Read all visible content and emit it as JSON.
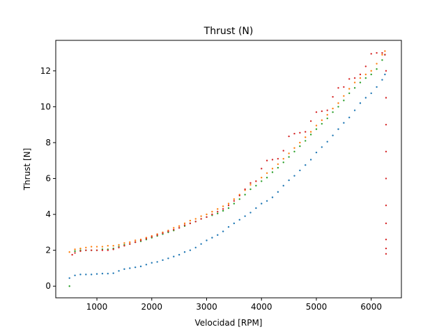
{
  "chart_data": {
    "type": "scatter",
    "title": "Thrust (N)",
    "xlabel": "Velocidad [RPM]",
    "ylabel": "Thrust [N]",
    "xlim": [
      250,
      6550
    ],
    "ylim": [
      -0.65,
      13.7
    ],
    "xticks": [
      1000,
      2000,
      3000,
      4000,
      5000,
      6000
    ],
    "xtick_labels": [
      "1000",
      "2000",
      "3000",
      "4000",
      "5000",
      "6000"
    ],
    "yticks": [
      0,
      2,
      4,
      6,
      8,
      10,
      12
    ],
    "ytick_labels": [
      "0",
      "2",
      "4",
      "6",
      "8",
      "10",
      "12"
    ],
    "grid": false,
    "marker_size": 1.2,
    "series": [
      {
        "color": "#1f77b4",
        "x": [
          500,
          600,
          700,
          800,
          900,
          1000,
          1100,
          1200,
          1300,
          1400,
          1500,
          1600,
          1700,
          1800,
          1900,
          2000,
          2100,
          2200,
          2300,
          2400,
          2500,
          2600,
          2700,
          2800,
          2900,
          3000,
          3100,
          3200,
          3300,
          3400,
          3500,
          3600,
          3700,
          3800,
          3900,
          4000,
          4100,
          4200,
          4300,
          4400,
          4500,
          4600,
          4700,
          4800,
          4900,
          5000,
          5100,
          5200,
          5300,
          5400,
          5500,
          5600,
          5700,
          5800,
          5900,
          6000,
          6100,
          6200,
          6250
        ],
        "y": [
          0.45,
          0.6,
          0.65,
          0.65,
          0.65,
          0.68,
          0.7,
          0.7,
          0.72,
          0.85,
          0.95,
          1.0,
          1.05,
          1.1,
          1.2,
          1.3,
          1.35,
          1.45,
          1.55,
          1.65,
          1.75,
          1.9,
          2.0,
          2.15,
          2.35,
          2.55,
          2.7,
          2.85,
          3.05,
          3.3,
          3.5,
          3.7,
          3.9,
          4.1,
          4.35,
          4.6,
          4.75,
          4.95,
          5.25,
          5.6,
          5.9,
          6.15,
          6.45,
          6.75,
          7.05,
          7.45,
          7.75,
          8.05,
          8.4,
          8.75,
          9.1,
          9.4,
          9.8,
          10.2,
          10.5,
          10.75,
          11.1,
          11.5,
          11.8
        ]
      },
      {
        "color": "#ff7f0e",
        "x": [
          500,
          600,
          700,
          800,
          900,
          1000,
          1100,
          1200,
          1300,
          1400,
          1500,
          1600,
          1700,
          1800,
          1900,
          2000,
          2100,
          2200,
          2300,
          2400,
          2500,
          2600,
          2700,
          2800,
          2900,
          3000,
          3100,
          3200,
          3300,
          3400,
          3500,
          3600,
          3700,
          3800,
          3900,
          4000,
          4100,
          4200,
          4300,
          4400,
          4500,
          4600,
          4700,
          4800,
          4900,
          5000,
          5100,
          5200,
          5300,
          5400,
          5500,
          5600,
          5700,
          5800,
          5900,
          6000,
          6100,
          6200,
          6250
        ],
        "y": [
          1.9,
          2.05,
          2.1,
          2.15,
          2.2,
          2.2,
          2.2,
          2.25,
          2.25,
          2.3,
          2.4,
          2.45,
          2.55,
          2.6,
          2.7,
          2.8,
          2.9,
          3.0,
          3.1,
          3.25,
          3.35,
          3.5,
          3.65,
          3.75,
          3.9,
          4.0,
          4.15,
          4.3,
          4.45,
          4.6,
          4.85,
          5.1,
          5.35,
          5.65,
          5.85,
          6.05,
          6.3,
          6.55,
          6.8,
          7.1,
          7.4,
          7.7,
          8.0,
          8.3,
          8.6,
          8.95,
          9.25,
          9.55,
          9.9,
          10.2,
          10.6,
          11.0,
          11.35,
          11.6,
          11.8,
          12.0,
          12.4,
          12.9,
          13.1
        ]
      },
      {
        "color": "#2ca02c",
        "x": [
          500,
          600,
          700,
          800,
          900,
          1000,
          1100,
          1200,
          1300,
          1400,
          1500,
          1600,
          1700,
          1800,
          1900,
          2000,
          2100,
          2200,
          2300,
          2400,
          2500,
          2600,
          2700,
          2800,
          2900,
          3000,
          3100,
          3200,
          3300,
          3400,
          3500,
          3600,
          3700,
          3800,
          3900,
          4000,
          4100,
          4200,
          4300,
          4400,
          4500,
          4600,
          4700,
          4800,
          4900,
          5000,
          5100,
          5200,
          5300,
          5400,
          5500,
          5600,
          5700,
          5800,
          5900,
          6000,
          6100,
          6200,
          6250
        ],
        "y": [
          0.0,
          1.95,
          2.0,
          2.0,
          2.0,
          2.0,
          2.05,
          2.05,
          2.1,
          2.2,
          2.3,
          2.35,
          2.45,
          2.5,
          2.6,
          2.7,
          2.8,
          2.9,
          3.0,
          3.1,
          3.25,
          3.35,
          3.5,
          3.6,
          3.75,
          3.85,
          3.95,
          4.05,
          4.2,
          4.35,
          4.6,
          4.85,
          5.1,
          5.4,
          5.6,
          5.85,
          6.05,
          6.35,
          6.6,
          6.9,
          7.2,
          7.5,
          7.8,
          8.1,
          8.45,
          8.75,
          9.05,
          9.35,
          9.7,
          10.0,
          10.35,
          10.75,
          11.05,
          11.35,
          11.6,
          11.8,
          12.1,
          12.6,
          12.9
        ]
      },
      {
        "color": "#d62728",
        "x": [
          550,
          600,
          700,
          800,
          900,
          1000,
          1100,
          1200,
          1300,
          1400,
          1500,
          1600,
          1700,
          1800,
          1900,
          2000,
          2100,
          2200,
          2300,
          2400,
          2500,
          2600,
          2700,
          2800,
          2900,
          3000,
          3100,
          3200,
          3300,
          3400,
          3500,
          3600,
          3700,
          3800,
          3900,
          4000,
          4100,
          4200,
          4300,
          4400,
          4500,
          4600,
          4700,
          4800,
          4900,
          5000,
          5100,
          5200,
          5300,
          5400,
          5500,
          5600,
          5700,
          5800,
          5900,
          6000,
          6100,
          6200,
          6250,
          6270,
          6270,
          6270,
          6270,
          6270,
          6270,
          6270,
          6270,
          6270,
          6270
        ],
        "y": [
          1.75,
          1.85,
          1.95,
          2.0,
          2.0,
          2.0,
          2.0,
          2.0,
          2.05,
          2.15,
          2.25,
          2.35,
          2.45,
          2.55,
          2.65,
          2.75,
          2.85,
          2.95,
          3.05,
          3.15,
          3.25,
          3.4,
          3.5,
          3.6,
          3.75,
          3.85,
          4.0,
          4.15,
          4.3,
          4.5,
          4.75,
          5.05,
          5.4,
          5.75,
          5.85,
          6.55,
          7.0,
          7.05,
          7.1,
          7.55,
          8.35,
          8.5,
          8.55,
          8.6,
          9.2,
          9.7,
          9.75,
          9.8,
          10.55,
          11.05,
          11.1,
          11.55,
          11.6,
          11.8,
          12.25,
          12.95,
          13.0,
          13.0,
          12.9,
          12.0,
          10.5,
          9.0,
          7.5,
          6.0,
          4.5,
          3.5,
          2.6,
          2.1,
          1.8
        ]
      }
    ]
  }
}
